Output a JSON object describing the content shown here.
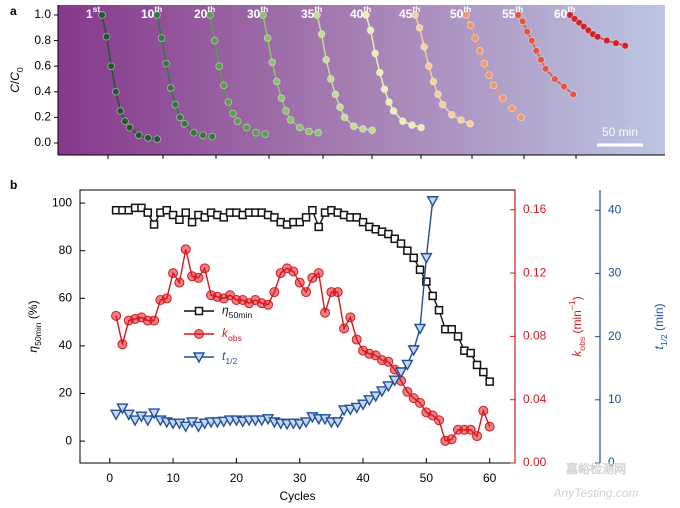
{
  "chart_data": [
    {
      "type": "line",
      "panel_label": "a",
      "ylabel": [
        "C",
        "/",
        "C",
        "0"
      ],
      "x": [
        0,
        5,
        10,
        15,
        20,
        25,
        30,
        40,
        50,
        60
      ],
      "ylim": [
        -0.094,
        1.078
      ],
      "yticks": [
        {
          "value": 0,
          "label": "0.0"
        },
        {
          "value": 0.2,
          "label": "0.2"
        },
        {
          "value": 0.4,
          "label": "0.4"
        },
        {
          "value": 0.6,
          "label": "0.6"
        },
        {
          "value": 0.8,
          "label": "0.8"
        },
        {
          "value": 1,
          "label": "1.0"
        }
      ],
      "scale_bar": {
        "label": "50 min",
        "length": 50
      },
      "series": [
        {
          "name": "1",
          "superscript": "st",
          "color": "#1f5a2c",
          "values": [
            1.0,
            0.83,
            0.6,
            0.4,
            0.25,
            0.17,
            0.12,
            0.06,
            0.04,
            0.03
          ]
        },
        {
          "name": "10",
          "superscript": "th",
          "color": "#2f7a3a",
          "values": [
            1.0,
            0.82,
            0.62,
            0.43,
            0.3,
            0.2,
            0.15,
            0.08,
            0.06,
            0.05
          ]
        },
        {
          "name": "20",
          "superscript": "th",
          "color": "#5a9e4e",
          "values": [
            1.0,
            0.8,
            0.6,
            0.45,
            0.32,
            0.23,
            0.17,
            0.12,
            0.08,
            0.07
          ]
        },
        {
          "name": "30",
          "superscript": "th",
          "color": "#8dbf6e",
          "values": [
            1.0,
            0.82,
            0.63,
            0.48,
            0.35,
            0.25,
            0.18,
            0.12,
            0.09,
            0.08
          ]
        },
        {
          "name": "35",
          "superscript": "th",
          "color": "#bfdc93",
          "values": [
            1.0,
            0.85,
            0.65,
            0.5,
            0.38,
            0.28,
            0.2,
            0.13,
            0.11,
            0.1
          ]
        },
        {
          "name": "40",
          "superscript": "th",
          "color": "#e8efb0",
          "values": [
            1.0,
            0.88,
            0.7,
            0.55,
            0.42,
            0.32,
            0.25,
            0.17,
            0.14,
            0.12
          ]
        },
        {
          "name": "45",
          "superscript": "th",
          "color": "#f4cf9a",
          "values": [
            1.0,
            0.9,
            0.75,
            0.6,
            0.48,
            0.38,
            0.3,
            0.22,
            0.18,
            0.15
          ]
        },
        {
          "name": "50",
          "superscript": "th",
          "color": "#ec9a6c",
          "values": [
            1.0,
            0.92,
            0.82,
            0.72,
            0.62,
            0.53,
            0.45,
            0.35,
            0.27,
            0.2
          ]
        },
        {
          "name": "55",
          "superscript": "th",
          "color": "#e0553f",
          "values": [
            1.0,
            0.95,
            0.87,
            0.8,
            0.72,
            0.65,
            0.58,
            0.5,
            0.44,
            0.38
          ]
        },
        {
          "name": "60",
          "superscript": "th",
          "color": "#d0222a",
          "values": [
            1.0,
            0.97,
            0.94,
            0.91,
            0.88,
            0.85,
            0.83,
            0.8,
            0.78,
            0.76
          ]
        }
      ]
    },
    {
      "type": "line",
      "panel_label": "b",
      "xlabel": "Cycles",
      "ylabel": [
        "η",
        "50min",
        " (%)"
      ],
      "y2label": [
        "k",
        "obs",
        " (min",
        "−1",
        ")"
      ],
      "y3label": [
        "t",
        "1/2",
        " (min)"
      ],
      "x": [
        1,
        2,
        3,
        4,
        5,
        6,
        7,
        8,
        9,
        10,
        11,
        12,
        13,
        14,
        15,
        16,
        17,
        18,
        19,
        20,
        21,
        22,
        23,
        24,
        25,
        26,
        27,
        28,
        29,
        30,
        31,
        32,
        33,
        34,
        35,
        36,
        37,
        38,
        39,
        40,
        41,
        42,
        43,
        44,
        45,
        46,
        47,
        48,
        49,
        50,
        51,
        52,
        53,
        54,
        55,
        56,
        57,
        58,
        59,
        60
      ],
      "xlim": [
        -4.7,
        64
      ],
      "xticks": [
        0,
        10,
        20,
        30,
        40,
        50,
        60
      ],
      "ylim": [
        -9.2,
        105.5
      ],
      "yticks": [
        0,
        20,
        40,
        60,
        80,
        100
      ],
      "y2lim": [
        0,
        0.1725
      ],
      "y2ticks": [
        {
          "value": 0,
          "label": "0.00"
        },
        {
          "value": 0.04,
          "label": "0.04"
        },
        {
          "value": 0.08,
          "label": "0.08"
        },
        {
          "value": 0.12,
          "label": "0.12"
        },
        {
          "value": 0.16,
          "label": "0.16"
        }
      ],
      "y3lim": [
        0,
        43.2
      ],
      "y3ticks": [
        0,
        10,
        20,
        30,
        40
      ],
      "series": [
        {
          "name": "η",
          "subscript": "50min",
          "color": "#111111",
          "marker": "square",
          "axis": "y",
          "values": [
            97,
            97,
            97,
            98,
            98,
            96,
            91,
            96,
            97,
            95,
            93,
            96,
            92,
            95,
            94,
            96,
            95,
            94,
            96,
            96,
            95,
            96,
            96,
            96,
            95,
            94,
            92,
            91,
            92,
            92,
            94,
            97,
            90,
            96,
            97,
            96,
            95,
            94,
            94,
            92,
            90,
            89,
            88,
            87,
            85,
            83,
            80,
            77,
            72,
            67,
            61,
            55,
            47,
            47,
            44,
            38,
            37,
            32,
            29,
            25
          ]
        },
        {
          "name": "k",
          "subscript": "obs",
          "color": "#d7181f",
          "marker": "circle",
          "axis": "y2",
          "values": [
            0.093,
            0.075,
            0.09,
            0.091,
            0.092,
            0.09,
            0.09,
            0.103,
            0.104,
            0.12,
            0.114,
            0.135,
            0.118,
            0.117,
            0.123,
            0.106,
            0.105,
            0.104,
            0.106,
            0.103,
            0.103,
            0.101,
            0.103,
            0.101,
            0.1,
            0.108,
            0.12,
            0.123,
            0.121,
            0.114,
            0.108,
            0.117,
            0.12,
            0.095,
            0.108,
            0.108,
            0.085,
            0.092,
            0.078,
            0.071,
            0.069,
            0.068,
            0.065,
            0.064,
            0.059,
            0.052,
            0.045,
            0.041,
            0.038,
            0.032,
            0.03,
            0.027,
            0.014,
            0.015,
            0.021,
            0.021,
            0.021,
            0.017,
            0.033,
            0.023
          ]
        },
        {
          "name": "t",
          "subscript": "1/2",
          "color": "#1f4e9a",
          "marker": "triangle",
          "axis": "y3",
          "values": [
            7.7,
            8.7,
            7.7,
            6.8,
            7.4,
            6.8,
            7.9,
            6.8,
            6.5,
            6.3,
            6.3,
            5.8,
            6.5,
            5.8,
            6.3,
            6.5,
            6.5,
            6.6,
            6.8,
            6.8,
            6.6,
            6.8,
            6.8,
            6.8,
            7.0,
            6.5,
            6.3,
            6.2,
            6.3,
            6.2,
            6.5,
            7.3,
            7.0,
            7.0,
            6.5,
            6.5,
            8.4,
            8.5,
            8.8,
            9.3,
            10,
            10.6,
            11.4,
            12.2,
            13.1,
            14.4,
            15.6,
            17.9,
            21.3,
            32.5,
            41.5,
            null,
            null,
            null,
            null,
            null,
            null,
            null,
            null,
            null
          ]
        }
      ]
    },
    {
      "watermark": [
        "嘉峪检测网",
        "AnyTesting.com"
      ]
    }
  ]
}
